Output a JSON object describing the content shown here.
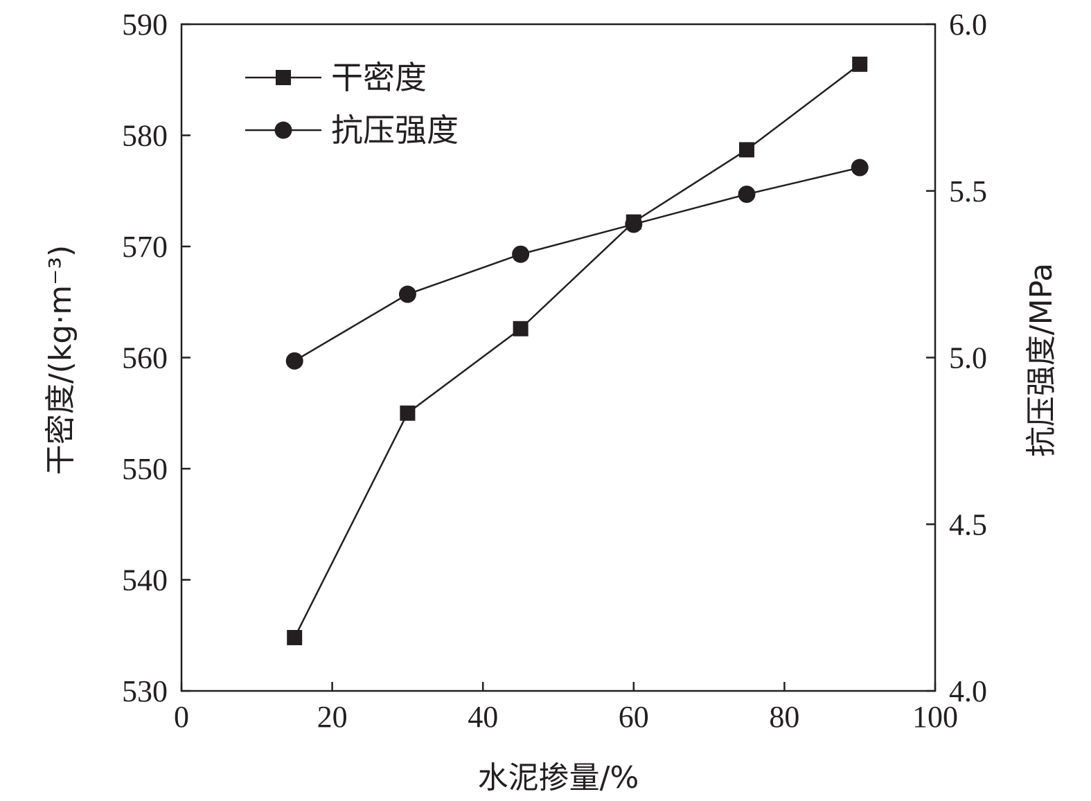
{
  "chart_data": {
    "type": "line",
    "xlabel": "水泥掺量/%",
    "ylabel_left": "干密度/(kg·m⁻³)",
    "ylabel_right": "抗压强度/MPa",
    "xlim": [
      0,
      100
    ],
    "ylim_left": [
      530,
      590
    ],
    "ylim_right": [
      4.0,
      6.0
    ],
    "x_ticks": [
      "0",
      "20",
      "40",
      "60",
      "80",
      "100"
    ],
    "y_left_ticks": [
      "530",
      "540",
      "550",
      "560",
      "570",
      "580",
      "590"
    ],
    "y_right_ticks": [
      "4.0",
      "4.5",
      "5.0",
      "5.5",
      "6.0"
    ],
    "grid": false,
    "legend_position": "top-left",
    "x": [
      15,
      30,
      45,
      60,
      75,
      90
    ],
    "series": [
      {
        "name": "干密度",
        "axis": "left",
        "marker": "square",
        "color": "#231f20",
        "values": [
          534.8,
          555.0,
          562.6,
          572.2,
          578.7,
          586.4
        ]
      },
      {
        "name": "抗压强度",
        "axis": "right",
        "marker": "circle",
        "color": "#231f20",
        "values": [
          4.99,
          5.19,
          5.31,
          5.4,
          5.49,
          5.57
        ]
      }
    ]
  }
}
